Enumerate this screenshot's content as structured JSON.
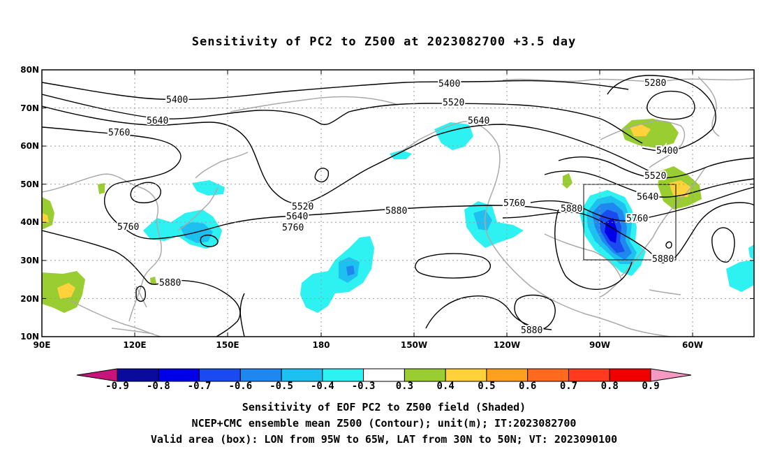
{
  "title": "Sensitivity of PC2 to Z500 at 2023082700 +3.5 day",
  "lat_labels": [
    "80N",
    "70N",
    "60N",
    "50N",
    "40N",
    "30N",
    "20N",
    "10N"
  ],
  "lon_labels": [
    "90E",
    "120E",
    "150E",
    "180",
    "150W",
    "120W",
    "90W",
    "60W"
  ],
  "contour_labels": [
    "5400",
    "5400",
    "5280",
    "5520",
    "5640",
    "5640",
    "5760",
    "5400",
    "5520",
    "5520",
    "5640",
    "5640",
    "5760",
    "5760",
    "5760",
    "5880",
    "5880",
    "5760",
    "5880",
    "5880",
    "5880"
  ],
  "colorbar": {
    "labels": [
      "-0.9",
      "-0.8",
      "-0.7",
      "-0.6",
      "-0.5",
      "-0.4",
      "-0.3",
      "0.3",
      "0.4",
      "0.5",
      "0.6",
      "0.7",
      "0.8",
      "0.9"
    ],
    "colors": [
      "#0a0a9c",
      "#0000e6",
      "#1a4bf0",
      "#1e87f0",
      "#1ec0f0",
      "#2ef2f2",
      "#ffffff",
      "#9acd32",
      "#ffd23c",
      "#ffa01e",
      "#ff6a1e",
      "#ff3a1e",
      "#ee0000"
    ],
    "low_arrow_color": "#c8147a",
    "high_arrow_color": "#f49ac2"
  },
  "captions": [
    "Sensitivity of EOF PC2 to Z500 field (Shaded)",
    "NCEP+CMC ensemble mean Z500 (Contour); unit(m); IT:2023082700",
    "Valid area (box): LON from 95W to 65W, LAT from 30N to 50N; VT: 2023090100"
  ],
  "colors": {
    "coast": "#aaaaaa",
    "contour": "#000000",
    "grid": "#999999"
  }
}
